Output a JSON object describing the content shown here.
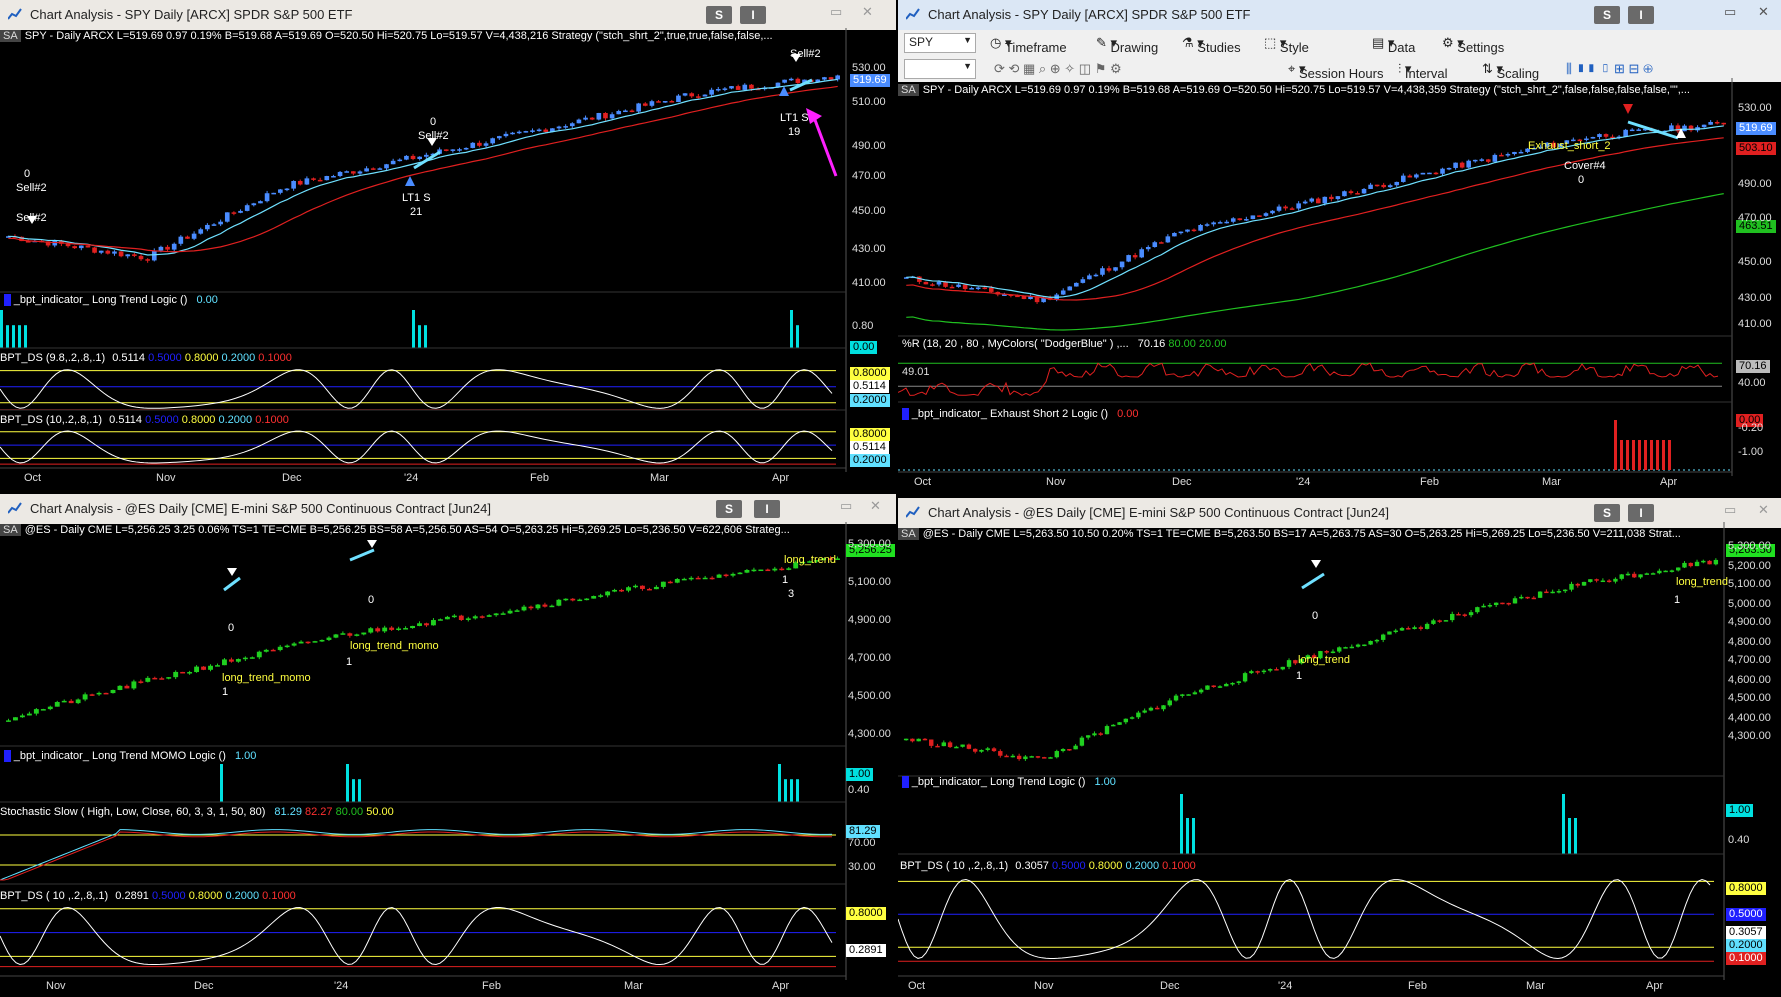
{
  "windows": [
    {
      "id": "w1",
      "title": "Chart Analysis - SPY Daily [ARCX] SPDR S&P 500 ETF",
      "symbol_line": "SPY - Daily  ARCX  L=519.69  0.97  0.19%  B=519.68  A=519.69  O=520.50  Hi=520.75  Lo=519.57  V=4,438,216  Strategy (\"stch_shrt_2\",true,true,false,false,...",
      "price_axis": [
        "530.00",
        "510.00",
        "490.00",
        "470.00",
        "450.00",
        "430.00",
        "410.00"
      ],
      "price_tag": "519.69",
      "x_labels": [
        "Oct",
        "Nov",
        "Dec",
        "'24",
        "Feb",
        "Mar",
        "Apr"
      ],
      "annotations": [
        "0",
        "Sell#2",
        "Sell#2",
        "0",
        "Sell#2",
        "LT1 S",
        "21",
        "Sell#2",
        "LT1 S",
        "19"
      ],
      "indicators": [
        {
          "label": "_bpt_indicator_ Long Trend Logic ()",
          "value": "0.00",
          "axis": [
            "0.80"
          ],
          "tag": "0.00"
        },
        {
          "label": "BPT_DS (9.8,.2,.8,.1)",
          "values": [
            "0.5114",
            "0.5000",
            "0.8000",
            "0.2000",
            "0.1000"
          ],
          "tags": [
            "0.8000",
            "0.5114",
            "0.2000"
          ]
        },
        {
          "label": "BPT_DS (10,.2,.8,.1)",
          "values": [
            "0.5114",
            "0.5000",
            "0.8000",
            "0.2000",
            "0.1000"
          ],
          "tags": [
            "0.8000",
            "0.5114",
            "0.2000"
          ]
        }
      ]
    },
    {
      "id": "w2",
      "title": "Chart Analysis - SPY Daily [ARCX] SPDR S&P 500 ETF",
      "toolbar": [
        "Timeframe",
        "Drawing",
        "Studies",
        "Style",
        "Data",
        "Settings",
        "Session Hours",
        "Interval",
        "Scaling"
      ],
      "combo_symbol": "SPY",
      "symbol_line": "SPY - Daily  ARCX  L=519.69  0.97  0.19%  B=519.68  A=519.69  O=520.50  Hi=520.75  Lo=519.57  V=4,438,359  Strategy (\"stch_shrt_2\",false,false,false,false,\"\",...",
      "price_axis": [
        "530.00",
        "490.00",
        "470.00",
        "450.00",
        "430.00",
        "410.00"
      ],
      "price_tags": [
        "519.69",
        "503.10",
        "463.51"
      ],
      "x_labels": [
        "Oct",
        "Nov",
        "Dec",
        "'24",
        "Feb",
        "Mar",
        "Apr"
      ],
      "annotations": [
        "Exhaust_short_2",
        "Cover#4",
        "0"
      ],
      "indicators": [
        {
          "label": "%R (18, 20 , 80 , MyColors( \"DodgerBlue\" ) ,...",
          "values": [
            "70.16",
            "80.00",
            "20.00"
          ],
          "left_value": "49.01",
          "axis": [
            "40.00"
          ],
          "tag": "70.16"
        },
        {
          "label": "_bpt_indicator_ Exhaust Short 2 Logic ()",
          "value": "0.00",
          "axis": [
            "-0.20",
            "-1.00"
          ],
          "tag": "0.00"
        }
      ]
    },
    {
      "id": "w3",
      "title": "Chart Analysis - @ES Daily [CME] E-mini S&P 500 Continuous Contract [Jun24]",
      "symbol_line": "@ES - Daily  CME  L=5,256.25  3.25  0.06%  TS=1  TE=CME  B=5,256.25  BS=58  A=5,256.50  AS=54  O=5,263.25  Hi=5,269.25  Lo=5,236.50  V=622,606  Strateg...",
      "price_axis": [
        "5,300.00",
        "5,100.00",
        "4,900.00",
        "4,700.00",
        "4,500.00",
        "4,300.00"
      ],
      "price_tag": "5,256.25",
      "x_labels": [
        "Nov",
        "Dec",
        "'24",
        "Feb",
        "Mar",
        "Apr"
      ],
      "annotations": [
        "0",
        "long_trend_momo",
        "1",
        "0",
        "long_trend_momo",
        "1",
        "long_trend",
        "1",
        "3"
      ],
      "indicators": [
        {
          "label": "_bpt_indicator_ Long Trend MOMO Logic ()",
          "value": "1.00",
          "axis": [
            "0.40"
          ],
          "tag": "1.00"
        },
        {
          "label": "Stochastic Slow ( High, Low, Close, 60, 3, 3, 1, 50, 80)",
          "values": [
            "81.29",
            "82.27",
            "80.00",
            "50.00"
          ],
          "axis": [
            "70.00",
            "30.00"
          ],
          "tag": "81.29"
        },
        {
          "label": "BPT_DS ( 10 ,.2,.8,.1)",
          "values": [
            "0.2891",
            "0.5000",
            "0.8000",
            "0.2000",
            "0.1000"
          ],
          "tags": [
            "0.8000",
            "0.2891"
          ]
        }
      ]
    },
    {
      "id": "w4",
      "title": "Chart Analysis - @ES Daily [CME] E-mini S&P 500 Continuous Contract [Jun24]",
      "symbol_line": "@ES - Daily  CME  L=5,263.50  10.50  0.20%  TS=1  TE=CME  B=5,263.50  BS=17  A=5,263.75  AS=30  O=5,263.25  Hi=5,269.25  Lo=5,236.50  V=211,038  Strat...",
      "price_axis": [
        "5,300.00",
        "5,200.00",
        "5,100.00",
        "5,000.00",
        "4,900.00",
        "4,800.00",
        "4,700.00",
        "4,600.00",
        "4,500.00",
        "4,400.00",
        "4,300.00"
      ],
      "price_tag": "5,263.50",
      "x_labels": [
        "Oct",
        "Nov",
        "Dec",
        "'24",
        "Feb",
        "Mar",
        "Apr"
      ],
      "annotations": [
        "0",
        "long_trend",
        "1",
        "long_trend",
        "1"
      ],
      "indicators": [
        {
          "label": "_bpt_indicator_ Long Trend Logic ()",
          "value": "1.00",
          "axis": [
            "0.40"
          ],
          "tag": "1.00"
        },
        {
          "label": "BPT_DS ( 10 ,.2,.8,.1)",
          "values": [
            "0.3057",
            "0.5000",
            "0.8000",
            "0.2000",
            "0.1000"
          ],
          "tags": [
            "0.8000",
            "0.5000",
            "0.3057",
            "0.2000",
            "0.1000"
          ]
        }
      ]
    }
  ],
  "title_buttons": [
    "S",
    "I"
  ],
  "colors": {
    "up": "#2fd02f",
    "down": "#e02020",
    "spy_up": "#4a8cff",
    "cyan": "#6fe0ff",
    "yellow": "#ffff40",
    "blue_line": "#2020ff",
    "red_line": "#ff2020",
    "magenta": "#ff20ff"
  },
  "chart_data": [
    {
      "type": "line",
      "window": "w1",
      "x": [
        "Oct",
        "Nov",
        "Dec",
        "'24",
        "Feb",
        "Mar",
        "Apr"
      ],
      "series": [
        {
          "values": [
            430,
            418,
            458,
            475,
            492,
            510,
            519.69
          ]
        }
      ],
      "ylim": [
        400,
        535
      ]
    },
    {
      "type": "line",
      "window": "w2",
      "x": [
        "Oct",
        "Nov",
        "Dec",
        "'24",
        "Feb",
        "Mar",
        "Apr"
      ],
      "series": [
        {
          "values": [
            428,
            415,
            455,
            474,
            494,
            512,
            519.69
          ]
        }
      ],
      "ylim": [
        395,
        535
      ]
    },
    {
      "type": "line",
      "window": "w3",
      "x": [
        "Nov",
        "Dec",
        "'24",
        "Feb",
        "Mar",
        "Apr"
      ],
      "series": [
        {
          "values": [
            4350,
            4600,
            4820,
            4960,
            5120,
            5256.25
          ]
        }
      ],
      "ylim": [
        4200,
        5350
      ]
    },
    {
      "type": "line",
      "window": "w4",
      "x": [
        "Oct",
        "Nov",
        "Dec",
        "'24",
        "Feb",
        "Mar",
        "Apr"
      ],
      "series": [
        {
          "values": [
            4400,
            4300,
            4600,
            4800,
            4980,
            5150,
            5263.5
          ]
        }
      ],
      "ylim": [
        4250,
        5350
      ]
    }
  ]
}
